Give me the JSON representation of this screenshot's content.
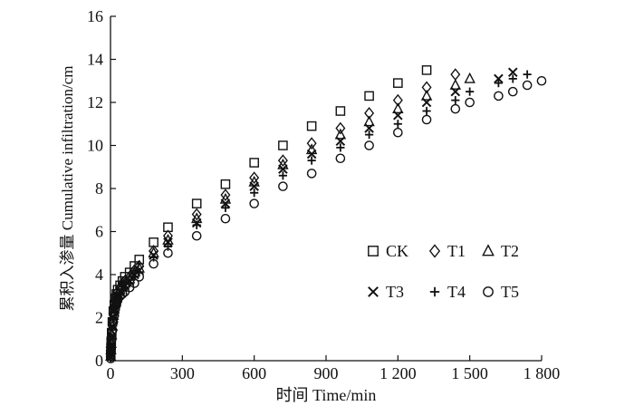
{
  "chart_data": {
    "type": "scatter",
    "title": "",
    "xlabel": "时间 Time/min",
    "ylabel": "累积入渗量 Cumulative infiltration/cm",
    "xlim": [
      0,
      1800
    ],
    "ylim": [
      0,
      16
    ],
    "xticks": [
      0,
      300,
      600,
      900,
      1200,
      1500,
      1800
    ],
    "xtick_labels": [
      "0",
      "300",
      "600",
      "900",
      "1 200",
      "1 500",
      "1 800"
    ],
    "yticks": [
      0,
      2,
      4,
      6,
      8,
      10,
      12,
      14,
      16
    ],
    "ytick_labels": [
      "0",
      "2",
      "4",
      "6",
      "8",
      "10",
      "12",
      "14",
      "16"
    ],
    "grid": false,
    "legend_position": "lower-right",
    "series": [
      {
        "name": "CK",
        "marker": "square",
        "points": [
          [
            1,
            0.3
          ],
          [
            2,
            0.6
          ],
          [
            3,
            0.9
          ],
          [
            5,
            1.3
          ],
          [
            8,
            1.8
          ],
          [
            12,
            2.3
          ],
          [
            16,
            2.6
          ],
          [
            20,
            2.9
          ],
          [
            25,
            3.1
          ],
          [
            30,
            3.3
          ],
          [
            40,
            3.5
          ],
          [
            50,
            3.7
          ],
          [
            60,
            3.9
          ],
          [
            80,
            4.1
          ],
          [
            100,
            4.4
          ],
          [
            120,
            4.7
          ],
          [
            180,
            5.5
          ],
          [
            240,
            6.2
          ],
          [
            360,
            7.3
          ],
          [
            480,
            8.2
          ],
          [
            600,
            9.2
          ],
          [
            720,
            10.0
          ],
          [
            840,
            10.9
          ],
          [
            960,
            11.6
          ],
          [
            1080,
            12.3
          ],
          [
            1200,
            12.9
          ],
          [
            1320,
            13.5
          ]
        ]
      },
      {
        "name": "T1",
        "marker": "diamond",
        "points": [
          [
            1,
            0.2
          ],
          [
            2,
            0.5
          ],
          [
            3,
            0.8
          ],
          [
            5,
            1.2
          ],
          [
            8,
            1.7
          ],
          [
            12,
            2.2
          ],
          [
            16,
            2.5
          ],
          [
            20,
            2.8
          ],
          [
            25,
            3.0
          ],
          [
            30,
            3.2
          ],
          [
            40,
            3.4
          ],
          [
            50,
            3.6
          ],
          [
            60,
            3.7
          ],
          [
            80,
            3.9
          ],
          [
            100,
            4.2
          ],
          [
            120,
            4.4
          ],
          [
            180,
            5.1
          ],
          [
            240,
            5.8
          ],
          [
            360,
            6.8
          ],
          [
            480,
            7.7
          ],
          [
            600,
            8.5
          ],
          [
            720,
            9.3
          ],
          [
            840,
            10.1
          ],
          [
            960,
            10.8
          ],
          [
            1080,
            11.5
          ],
          [
            1200,
            12.1
          ],
          [
            1320,
            12.7
          ],
          [
            1440,
            13.3
          ]
        ]
      },
      {
        "name": "T2",
        "marker": "triangle",
        "points": [
          [
            1,
            0.2
          ],
          [
            2,
            0.5
          ],
          [
            3,
            0.8
          ],
          [
            5,
            1.2
          ],
          [
            8,
            1.6
          ],
          [
            12,
            2.1
          ],
          [
            16,
            2.4
          ],
          [
            20,
            2.7
          ],
          [
            25,
            2.9
          ],
          [
            30,
            3.1
          ],
          [
            40,
            3.3
          ],
          [
            50,
            3.5
          ],
          [
            60,
            3.6
          ],
          [
            80,
            3.8
          ],
          [
            100,
            4.1
          ],
          [
            120,
            4.3
          ],
          [
            180,
            5.0
          ],
          [
            240,
            5.6
          ],
          [
            360,
            6.6
          ],
          [
            480,
            7.5
          ],
          [
            600,
            8.3
          ],
          [
            720,
            9.1
          ],
          [
            840,
            9.8
          ],
          [
            960,
            10.5
          ],
          [
            1080,
            11.1
          ],
          [
            1200,
            11.7
          ],
          [
            1320,
            12.3
          ],
          [
            1440,
            12.8
          ],
          [
            1500,
            13.1
          ]
        ]
      },
      {
        "name": "T3",
        "marker": "x",
        "points": [
          [
            1,
            0.2
          ],
          [
            2,
            0.5
          ],
          [
            3,
            0.7
          ],
          [
            5,
            1.1
          ],
          [
            8,
            1.6
          ],
          [
            12,
            2.0
          ],
          [
            16,
            2.3
          ],
          [
            20,
            2.6
          ],
          [
            25,
            2.8
          ],
          [
            30,
            3.0
          ],
          [
            40,
            3.2
          ],
          [
            50,
            3.4
          ],
          [
            60,
            3.5
          ],
          [
            80,
            3.7
          ],
          [
            100,
            4.0
          ],
          [
            120,
            4.2
          ],
          [
            180,
            4.9
          ],
          [
            240,
            5.5
          ],
          [
            360,
            6.4
          ],
          [
            480,
            7.3
          ],
          [
            600,
            8.1
          ],
          [
            720,
            8.9
          ],
          [
            840,
            9.6
          ],
          [
            960,
            10.2
          ],
          [
            1080,
            10.8
          ],
          [
            1200,
            11.4
          ],
          [
            1320,
            12.0
          ],
          [
            1440,
            12.5
          ],
          [
            1620,
            13.1
          ],
          [
            1680,
            13.4
          ]
        ]
      },
      {
        "name": "T4",
        "marker": "plus",
        "points": [
          [
            1,
            0.2
          ],
          [
            2,
            0.4
          ],
          [
            3,
            0.7
          ],
          [
            5,
            1.1
          ],
          [
            8,
            1.5
          ],
          [
            12,
            1.9
          ],
          [
            16,
            2.3
          ],
          [
            20,
            2.5
          ],
          [
            25,
            2.7
          ],
          [
            30,
            2.9
          ],
          [
            40,
            3.1
          ],
          [
            50,
            3.3
          ],
          [
            60,
            3.4
          ],
          [
            80,
            3.6
          ],
          [
            100,
            3.9
          ],
          [
            120,
            4.1
          ],
          [
            180,
            4.8
          ],
          [
            240,
            5.3
          ],
          [
            360,
            6.3
          ],
          [
            480,
            7.1
          ],
          [
            600,
            7.8
          ],
          [
            720,
            8.6
          ],
          [
            840,
            9.3
          ],
          [
            960,
            9.9
          ],
          [
            1080,
            10.5
          ],
          [
            1200,
            11.0
          ],
          [
            1320,
            11.6
          ],
          [
            1440,
            12.1
          ],
          [
            1500,
            12.5
          ],
          [
            1620,
            12.9
          ],
          [
            1680,
            13.1
          ],
          [
            1740,
            13.3
          ]
        ]
      },
      {
        "name": "T5",
        "marker": "circle",
        "points": [
          [
            1,
            0.1
          ],
          [
            2,
            0.4
          ],
          [
            3,
            0.6
          ],
          [
            5,
            1.0
          ],
          [
            8,
            1.4
          ],
          [
            12,
            1.8
          ],
          [
            16,
            2.1
          ],
          [
            20,
            2.4
          ],
          [
            25,
            2.6
          ],
          [
            30,
            2.8
          ],
          [
            40,
            3.0
          ],
          [
            50,
            3.1
          ],
          [
            60,
            3.2
          ],
          [
            80,
            3.4
          ],
          [
            100,
            3.6
          ],
          [
            120,
            3.9
          ],
          [
            180,
            4.5
          ],
          [
            240,
            5.0
          ],
          [
            360,
            5.8
          ],
          [
            480,
            6.6
          ],
          [
            600,
            7.3
          ],
          [
            720,
            8.1
          ],
          [
            840,
            8.7
          ],
          [
            960,
            9.4
          ],
          [
            1080,
            10.0
          ],
          [
            1200,
            10.6
          ],
          [
            1320,
            11.2
          ],
          [
            1440,
            11.7
          ],
          [
            1500,
            12.0
          ],
          [
            1620,
            12.3
          ],
          [
            1680,
            12.5
          ],
          [
            1740,
            12.8
          ],
          [
            1800,
            13.0
          ]
        ]
      }
    ]
  }
}
